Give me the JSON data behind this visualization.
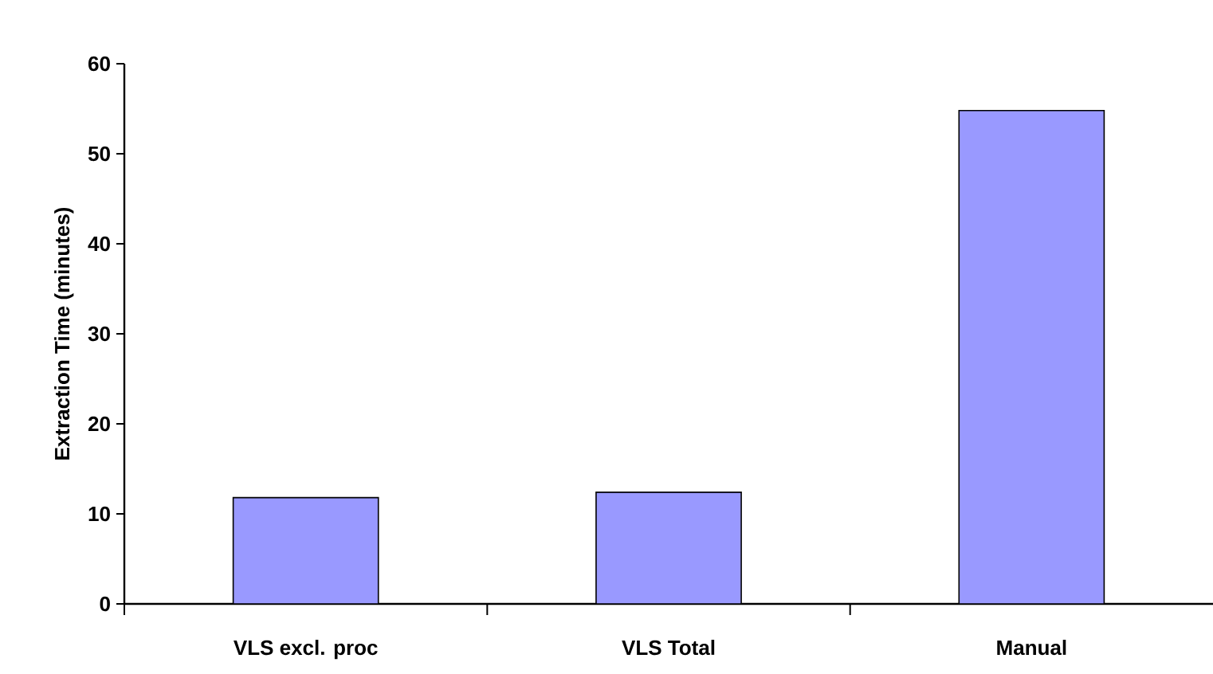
{
  "chart_data": {
    "type": "bar",
    "ylabel": "Extraction Time (minutes)",
    "categories": [
      "VLS excl. proc",
      "VLS Total",
      "Manual"
    ],
    "values": [
      11.8,
      12.4,
      54.8
    ],
    "color": "#9999ff",
    "ylim": [
      0,
      60
    ],
    "yticks": [
      0,
      10,
      20,
      30,
      40,
      50,
      60
    ]
  }
}
